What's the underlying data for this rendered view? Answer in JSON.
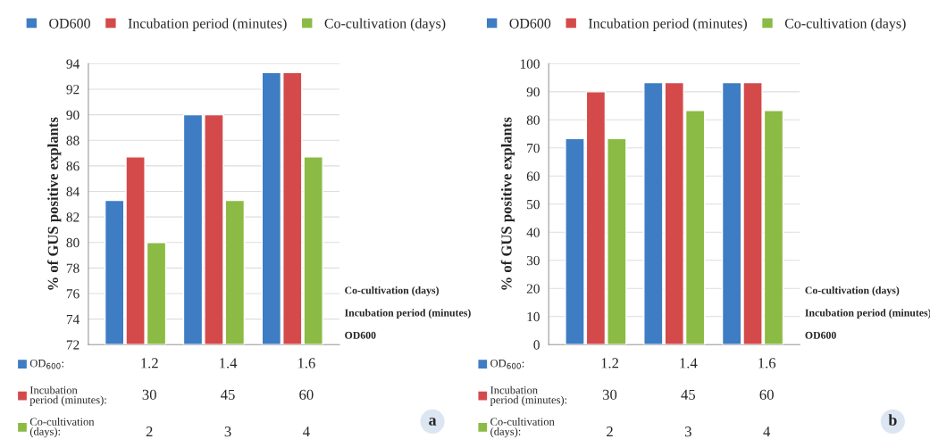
{
  "chart_data": [
    {
      "type": "bar",
      "ylabel": "% of GUS positive explants",
      "categories": [
        null,
        null,
        null
      ],
      "ylim": [
        72,
        94
      ],
      "yticks": [
        72,
        74,
        76,
        78,
        80,
        82,
        84,
        86,
        88,
        90,
        92,
        94
      ],
      "grid": "y",
      "legend": "top",
      "tick_labels": "y",
      "series": [
        {
          "name": "OD600",
          "color": "#3e7cc4",
          "values": [
            83.3,
            90,
            93.3
          ]
        },
        {
          "name": "Incubation period (minutes)",
          "color": "#d44a4a",
          "values": [
            86.7,
            90,
            93.3
          ]
        },
        {
          "name": "Co-cultivation (days)",
          "color": "#8bbb44",
          "values": [
            80,
            83.3,
            86.7
          ]
        }
      ],
      "annotations": [
        "OD$_{600}$:",
        "1.2",
        "1.4",
        "1.6",
        "Incubation\nperiod (minutes):",
        "30",
        "45",
        "60",
        "Co-cultivation\n(days):",
        "2",
        "3",
        "4",
        "a"
      ]
    },
    {
      "type": "bar",
      "ylabel": "% of GUS positive explants",
      "categories": [
        null,
        null,
        null
      ],
      "ylim": [
        0,
        100
      ],
      "yticks": [
        0,
        10,
        20,
        30,
        40,
        50,
        60,
        70,
        80,
        90,
        100
      ],
      "grid": "y",
      "legend": "top",
      "tick_labels": "y",
      "series": [
        {
          "name": "OD600",
          "color": "#3e7cc4",
          "values": [
            73.3,
            93.3,
            93.3
          ]
        },
        {
          "name": "Incubation period (minutes)",
          "color": "#d44a4a",
          "values": [
            90,
            93.3,
            93.3
          ]
        },
        {
          "name": "Co-cultivation (days)",
          "color": "#8bbb44",
          "values": [
            73.3,
            83.3,
            83.3
          ]
        }
      ],
      "annotations": [
        "OD$_{600}$:",
        "1.2",
        "1.4",
        "1.6",
        "Incubation\nperiod (minutes):",
        "30",
        "45",
        "60",
        "Co-cultivation\n(days):",
        "2",
        "3",
        "4",
        "b"
      ]
    }
  ]
}
